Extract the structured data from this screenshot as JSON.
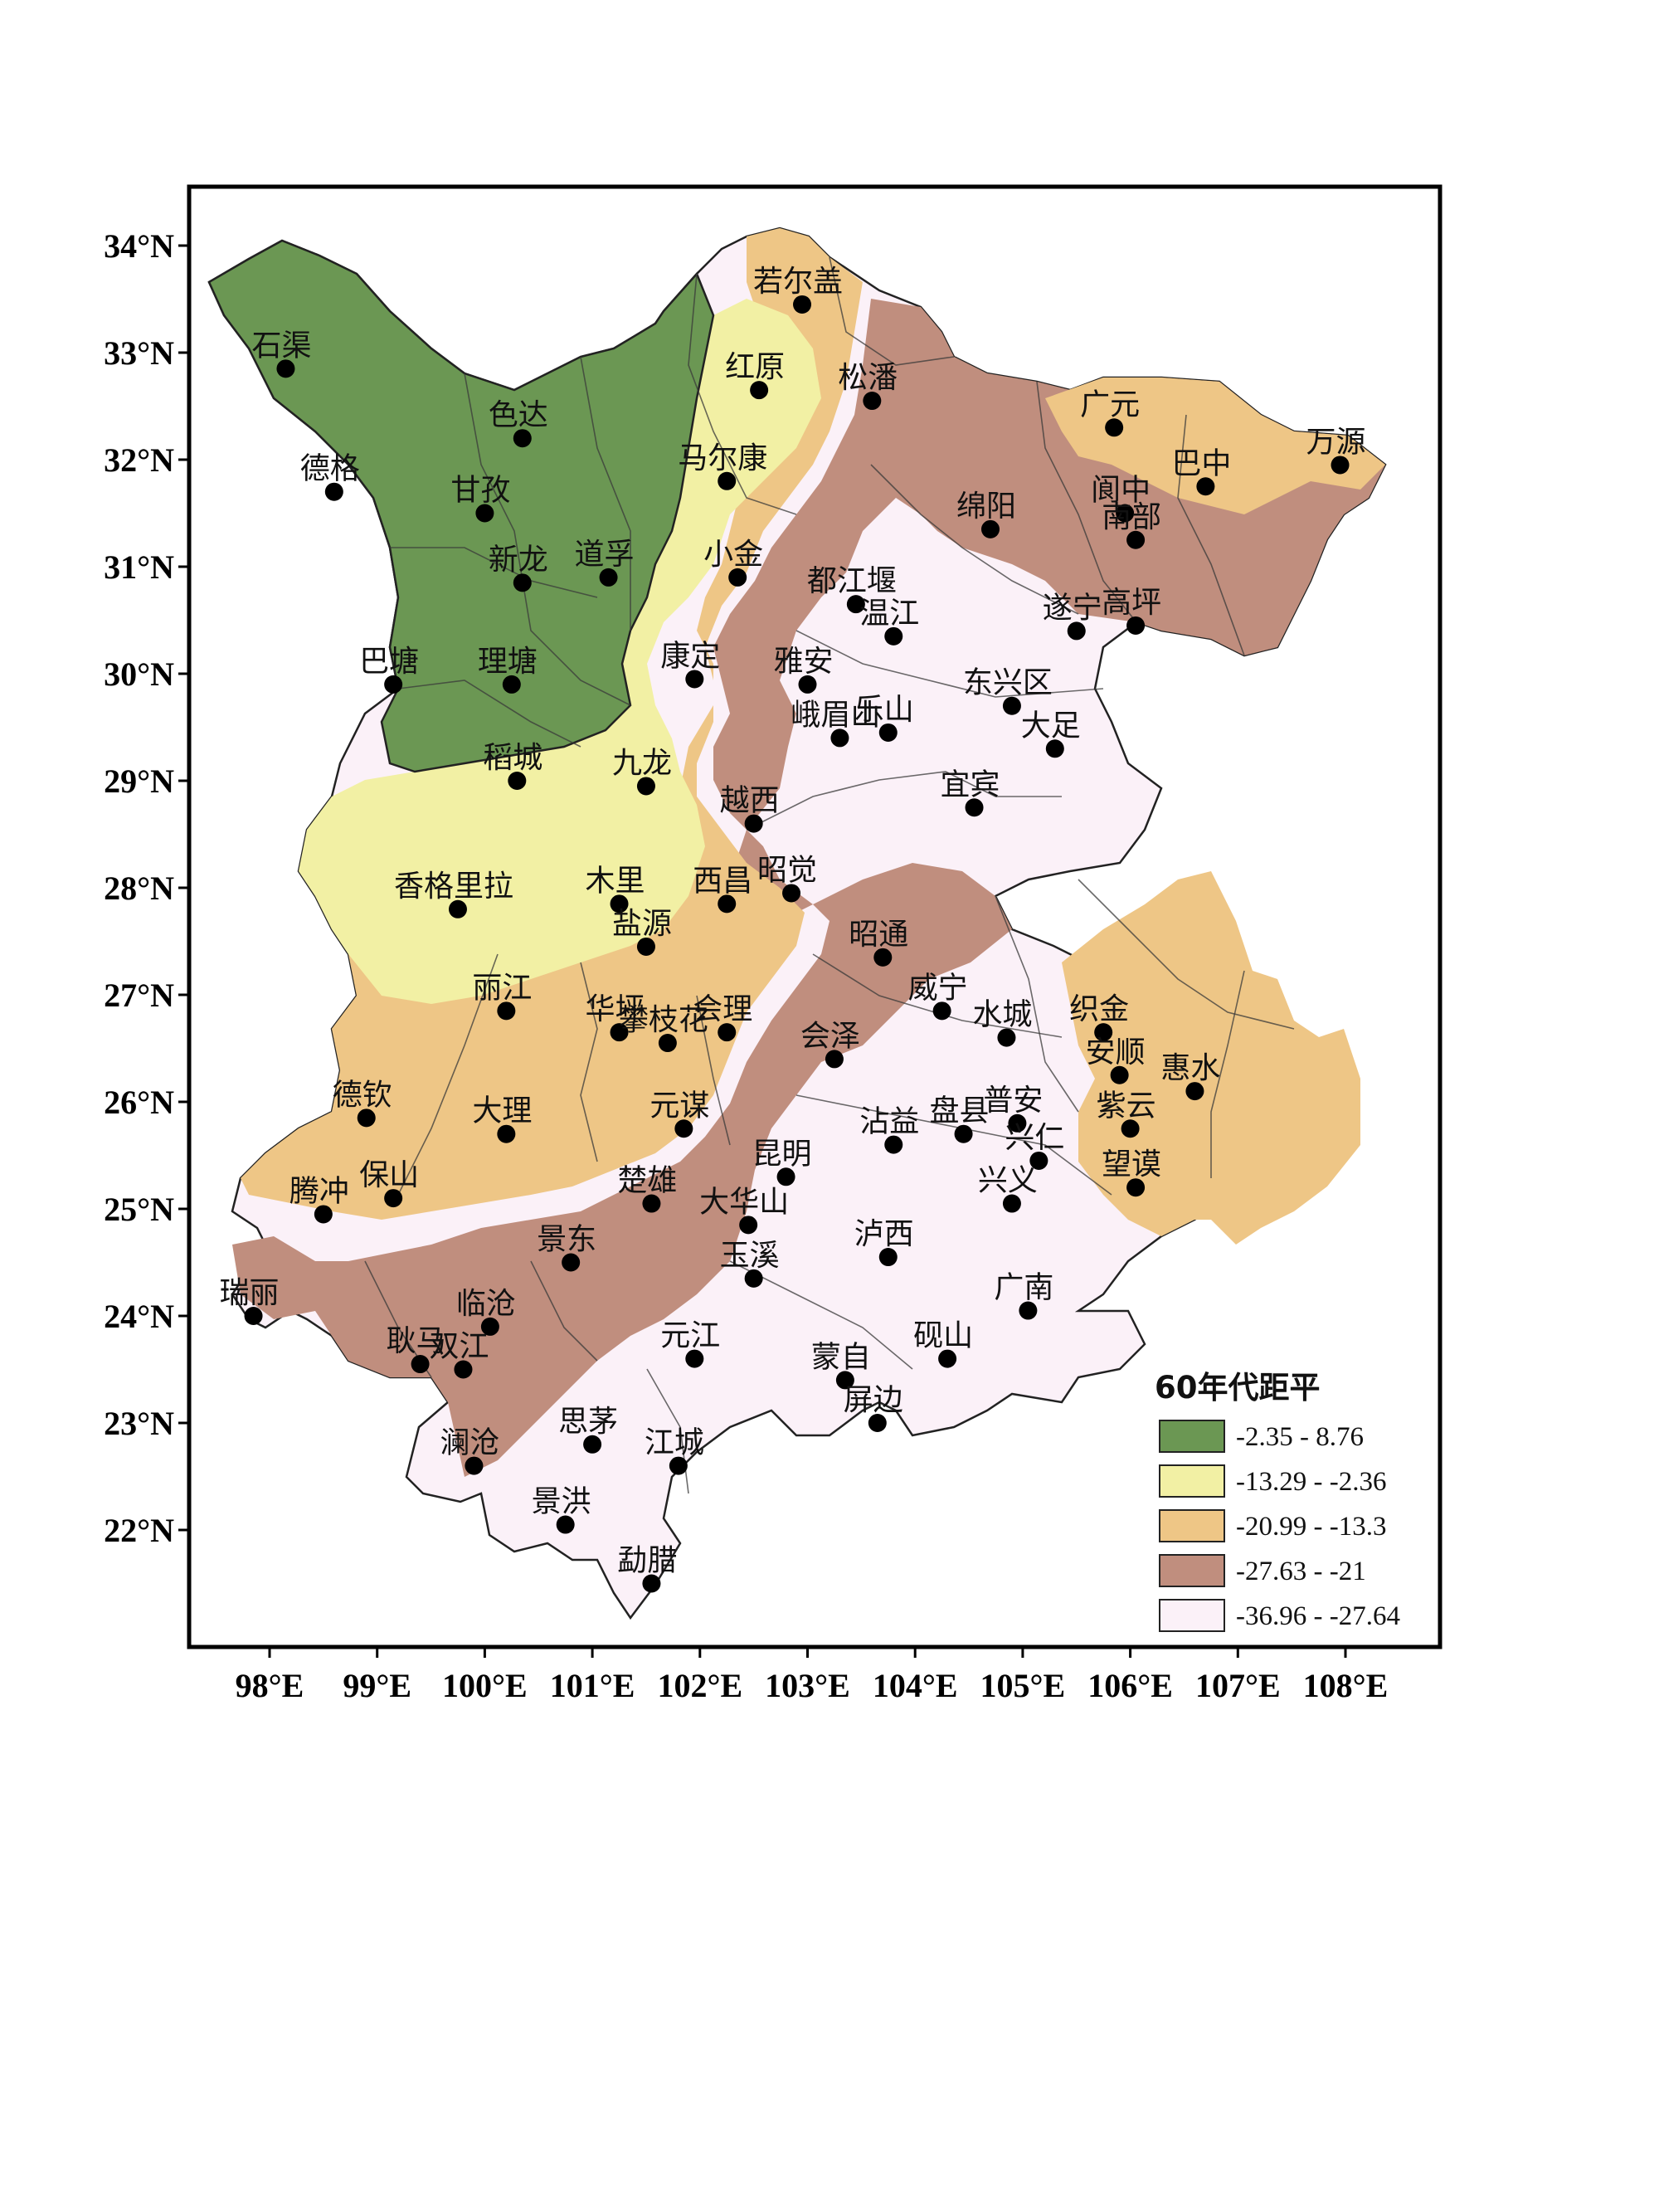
{
  "legend": {
    "title": "60年代距平",
    "items": [
      {
        "label": "-2.35 - 8.76",
        "color": "#6b9753"
      },
      {
        "label": "-13.29 - -2.36",
        "color": "#f2f0a4"
      },
      {
        "label": "-20.99 - -13.3",
        "color": "#eec686"
      },
      {
        "label": "-27.63 - -21",
        "color": "#c08e7e"
      },
      {
        "label": "-36.96 - -27.64",
        "color": "#fbf1f8"
      }
    ]
  },
  "axes": {
    "lon_labels": [
      "98°E",
      "99°E",
      "100°E",
      "101°E",
      "102°E",
      "103°E",
      "104°E",
      "105°E",
      "106°E",
      "107°E",
      "108°E"
    ],
    "lat_labels": [
      "34°N",
      "33°N",
      "32°N",
      "31°N",
      "30°N",
      "29°N",
      "28°N",
      "27°N",
      "26°N",
      "25°N",
      "24°N",
      "23°N",
      "22°N"
    ]
  },
  "stations": [
    {
      "name": "若尔盖",
      "lon": 102.95,
      "lat": 33.45
    },
    {
      "name": "红原",
      "lon": 102.55,
      "lat": 32.65
    },
    {
      "name": "松潘",
      "lon": 103.6,
      "lat": 32.55
    },
    {
      "name": "马尔康",
      "lon": 102.25,
      "lat": 31.8
    },
    {
      "name": "石渠",
      "lon": 98.15,
      "lat": 32.85
    },
    {
      "name": "色达",
      "lon": 100.35,
      "lat": 32.2
    },
    {
      "name": "德格",
      "lon": 98.6,
      "lat": 31.7
    },
    {
      "name": "甘孜",
      "lon": 100.0,
      "lat": 31.5
    },
    {
      "name": "新龙",
      "lon": 100.35,
      "lat": 30.85
    },
    {
      "name": "道孚",
      "lon": 101.15,
      "lat": 30.9
    },
    {
      "name": "小金",
      "lon": 102.35,
      "lat": 30.9
    },
    {
      "name": "绵阳",
      "lon": 104.7,
      "lat": 31.35
    },
    {
      "name": "广元",
      "lon": 105.85,
      "lat": 32.3
    },
    {
      "name": "阆中",
      "lon": 105.95,
      "lat": 31.5
    },
    {
      "name": "巴中",
      "lon": 106.7,
      "lat": 31.75
    },
    {
      "name": "南部",
      "lon": 106.05,
      "lat": 31.25
    },
    {
      "name": "万源",
      "lon": 107.95,
      "lat": 31.95
    },
    {
      "name": "遂宁",
      "lon": 105.5,
      "lat": 30.4
    },
    {
      "name": "高坪",
      "lon": 106.05,
      "lat": 30.45
    },
    {
      "name": "都江堰",
      "lon": 103.45,
      "lat": 30.65
    },
    {
      "name": "温江",
      "lon": 103.8,
      "lat": 30.35
    },
    {
      "name": "雅安",
      "lon": 103.0,
      "lat": 29.9
    },
    {
      "name": "巴塘",
      "lon": 99.15,
      "lat": 29.9
    },
    {
      "name": "理塘",
      "lon": 100.25,
      "lat": 29.9
    },
    {
      "name": "康定",
      "lon": 101.95,
      "lat": 29.95
    },
    {
      "name": "峨眉山",
      "lon": 103.3,
      "lat": 29.4
    },
    {
      "name": "乐山",
      "lon": 103.75,
      "lat": 29.45
    },
    {
      "name": "东兴区",
      "lon": 104.9,
      "lat": 29.7
    },
    {
      "name": "大足",
      "lon": 105.3,
      "lat": 29.3
    },
    {
      "name": "稻城",
      "lon": 100.3,
      "lat": 29.0
    },
    {
      "name": "九龙",
      "lon": 101.5,
      "lat": 28.95
    },
    {
      "name": "越西",
      "lon": 102.5,
      "lat": 28.6
    },
    {
      "name": "宜宾",
      "lon": 104.55,
      "lat": 28.75
    },
    {
      "name": "香格里拉",
      "lon": 99.75,
      "lat": 27.8
    },
    {
      "name": "木里",
      "lon": 101.25,
      "lat": 27.85
    },
    {
      "name": "西昌",
      "lon": 102.25,
      "lat": 27.85
    },
    {
      "name": "昭觉",
      "lon": 102.85,
      "lat": 27.95
    },
    {
      "name": "盐源",
      "lon": 101.5,
      "lat": 27.45
    },
    {
      "name": "昭通",
      "lon": 103.7,
      "lat": 27.35
    },
    {
      "name": "丽江",
      "lon": 100.2,
      "lat": 26.85
    },
    {
      "name": "华坪",
      "lon": 101.25,
      "lat": 26.65
    },
    {
      "name": "攀枝花",
      "lon": 101.7,
      "lat": 26.55
    },
    {
      "name": "会理",
      "lon": 102.25,
      "lat": 26.65
    },
    {
      "name": "会泽",
      "lon": 103.25,
      "lat": 26.4
    },
    {
      "name": "威宁",
      "lon": 104.25,
      "lat": 26.85
    },
    {
      "name": "水城",
      "lon": 104.85,
      "lat": 26.6
    },
    {
      "name": "织金",
      "lon": 105.75,
      "lat": 26.65
    },
    {
      "name": "安顺",
      "lon": 105.9,
      "lat": 26.25
    },
    {
      "name": "惠水",
      "lon": 106.6,
      "lat": 26.1
    },
    {
      "name": "德钦",
      "lon": 98.9,
      "lat": 25.85
    },
    {
      "name": "大理",
      "lon": 100.2,
      "lat": 25.7
    },
    {
      "name": "元谋",
      "lon": 101.85,
      "lat": 25.75
    },
    {
      "name": "沾益",
      "lon": 103.8,
      "lat": 25.6
    },
    {
      "name": "盘县",
      "lon": 104.45,
      "lat": 25.7
    },
    {
      "name": "普安",
      "lon": 104.95,
      "lat": 25.8
    },
    {
      "name": "紫云",
      "lon": 106.0,
      "lat": 25.75
    },
    {
      "name": "兴仁",
      "lon": 105.15,
      "lat": 25.45
    },
    {
      "name": "望谟",
      "lon": 106.05,
      "lat": 25.2
    },
    {
      "name": "兴义",
      "lon": 104.9,
      "lat": 25.05
    },
    {
      "name": "腾冲",
      "lon": 98.5,
      "lat": 24.95
    },
    {
      "name": "保山",
      "lon": 99.15,
      "lat": 25.1
    },
    {
      "name": "楚雄",
      "lon": 101.55,
      "lat": 25.05
    },
    {
      "name": "昆明",
      "lon": 102.8,
      "lat": 25.3
    },
    {
      "name": "大华山",
      "lon": 102.45,
      "lat": 24.85
    },
    {
      "name": "泸西",
      "lon": 103.75,
      "lat": 24.55
    },
    {
      "name": "景东",
      "lon": 100.8,
      "lat": 24.5
    },
    {
      "name": "玉溪",
      "lon": 102.5,
      "lat": 24.35
    },
    {
      "name": "瑞丽",
      "lon": 97.85,
      "lat": 24.0
    },
    {
      "name": "临沧",
      "lon": 100.05,
      "lat": 23.9
    },
    {
      "name": "耿马",
      "lon": 99.4,
      "lat": 23.55
    },
    {
      "name": "双江",
      "lon": 99.8,
      "lat": 23.5
    },
    {
      "name": "元江",
      "lon": 101.95,
      "lat": 23.6
    },
    {
      "name": "蒙自",
      "lon": 103.35,
      "lat": 23.4
    },
    {
      "name": "砚山",
      "lon": 104.3,
      "lat": 23.6
    },
    {
      "name": "广南",
      "lon": 105.05,
      "lat": 24.05
    },
    {
      "name": "屏边",
      "lon": 103.65,
      "lat": 23.0
    },
    {
      "name": "澜沧",
      "lon": 99.9,
      "lat": 22.6
    },
    {
      "name": "思茅",
      "lon": 101.0,
      "lat": 22.8
    },
    {
      "name": "江城",
      "lon": 101.8,
      "lat": 22.6
    },
    {
      "name": "景洪",
      "lon": 100.75,
      "lat": 22.05
    },
    {
      "name": "勐腊",
      "lon": 101.55,
      "lat": 21.5
    }
  ]
}
